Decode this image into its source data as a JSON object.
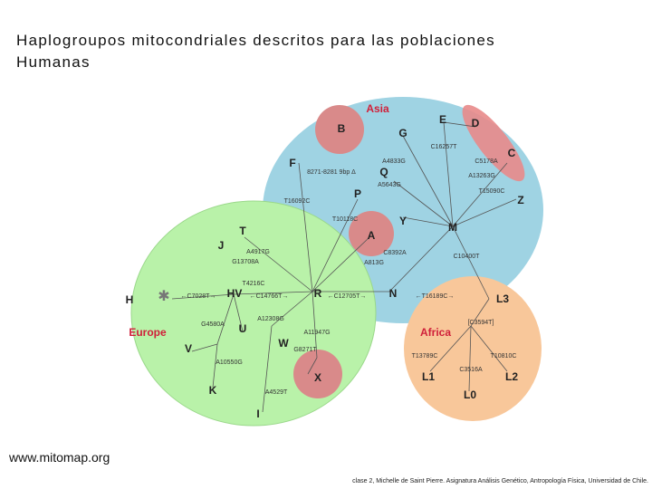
{
  "title": "Haplogroupos mitocondriales descritos para las poblaciones Humanas",
  "title_lines": [
    "Haplogroupos mitocondriales descritos para las poblaciones",
    "Humanas"
  ],
  "regions": [
    "Asia",
    "Europe",
    "Africa"
  ],
  "haplogroups": [
    "B",
    "E",
    "D",
    "G",
    "C",
    "F",
    "Q",
    "P",
    "Z",
    "Y",
    "M",
    "T",
    "J",
    "A",
    "H",
    "HV",
    "R",
    "N",
    "L3",
    "U",
    "W",
    "V",
    "X",
    "L1",
    "L2",
    "K",
    "L0",
    "I"
  ],
  "mutations": [
    "C16257T",
    "A4833G",
    "C5178A",
    "8271-8281 9bp Δ",
    "A13263G",
    "A5643G",
    "T16092C",
    "T10118C",
    "T15090C",
    "C8392A",
    "A813G",
    "C10400T",
    "A4917G",
    "G13708A",
    "T4216C",
    "←C7028T→",
    "←C14766T→",
    "←C12705T→",
    "←T16189C→",
    "G4580A",
    "A12308G",
    "[C3594T]",
    "A11947G",
    "G8271T",
    "A10550G",
    "T13789C",
    "T10810C",
    "C3516A",
    "A4529T"
  ],
  "footer": {
    "source": "www.mitomap.org",
    "credit": "clase 2, Michelle de Saint Pierre. Asignatura Análisis Genético, Antropología Física, Universidad de Chile."
  }
}
